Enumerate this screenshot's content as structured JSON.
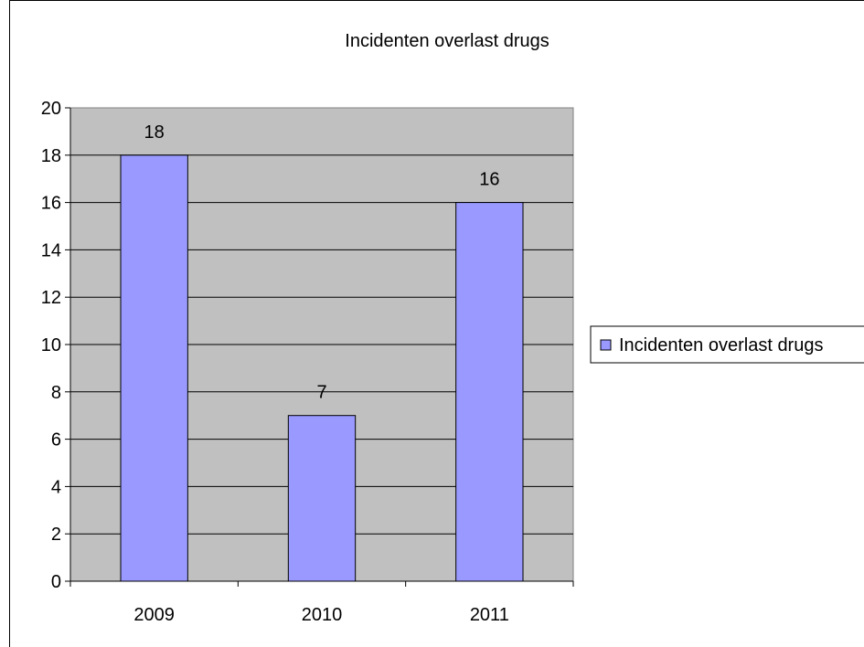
{
  "chart_data": {
    "type": "bar",
    "title": "Incidenten overlast drugs",
    "categories": [
      "2009",
      "2010",
      "2011"
    ],
    "series": [
      {
        "name": "Incidenten overlast drugs",
        "values": [
          18,
          7,
          16
        ],
        "color": "#9999ff"
      }
    ],
    "data_labels": [
      "18",
      "7",
      "16"
    ],
    "ylim": [
      0,
      20
    ],
    "yticks": [
      0,
      2,
      4,
      6,
      8,
      10,
      12,
      14,
      16,
      18,
      20
    ],
    "grid": "horizontal",
    "legend_position": "right",
    "plot_background": "#c0c0c0",
    "xlabel": "",
    "ylabel": ""
  }
}
